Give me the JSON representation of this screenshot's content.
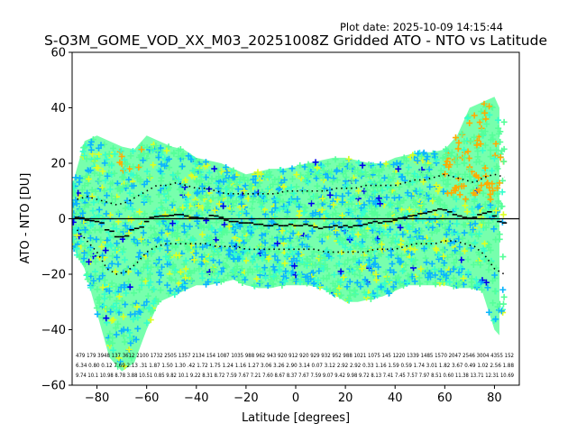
{
  "chart_data": {
    "type": "scatter",
    "title": "S-O3M_GOME_VOD_XX_M03_20251008Z Gridded ATO - NTO vs Latitude",
    "plot_date": "Plot date: 2025-10-09 14:15:44",
    "xlabel": "Latitude [degrees]",
    "ylabel": "ATO - NTO [DU]",
    "xlim": [
      -90,
      90
    ],
    "ylim": [
      -60,
      60
    ],
    "xticks": [
      -80,
      -60,
      -40,
      -20,
      0,
      20,
      40,
      60,
      80
    ],
    "yticks": [
      -60,
      -40,
      -20,
      0,
      20,
      40,
      60
    ],
    "zero_line": 0,
    "palette": {
      "main": "#55ff99",
      "teal": "#33ffcc",
      "blue": "#0ab4ff",
      "yellow": "#ddff22",
      "orange": "#ffaa00",
      "navy": "#0000ee"
    },
    "envelope": {
      "lat": [
        -90,
        -85,
        -80,
        -75,
        -70,
        -65,
        -60,
        -55,
        -50,
        -45,
        -40,
        -35,
        -30,
        -25,
        -20,
        -15,
        -10,
        -5,
        0,
        5,
        10,
        15,
        20,
        25,
        30,
        35,
        40,
        45,
        50,
        55,
        60,
        65,
        70,
        75,
        80,
        82
      ],
      "upper": [
        12,
        28,
        30,
        28,
        26,
        25,
        30,
        28,
        26,
        25,
        22,
        21,
        20,
        18,
        16,
        17,
        18,
        18,
        19,
        20,
        21,
        22,
        22,
        21,
        20,
        20,
        22,
        23,
        24,
        24,
        25,
        30,
        40,
        42,
        44,
        40
      ],
      "lower": [
        -10,
        -18,
        -34,
        -50,
        -55,
        -52,
        -40,
        -30,
        -28,
        -26,
        -24,
        -24,
        -23,
        -22,
        -24,
        -25,
        -25,
        -24,
        -24,
        -24,
        -25,
        -27,
        -30,
        -30,
        -29,
        -28,
        -26,
        -24,
        -24,
        -24,
        -24,
        -25,
        -25,
        -26,
        -40,
        -42
      ]
    },
    "median": {
      "lat": [
        -88,
        -86,
        -84,
        -82,
        -80,
        -78,
        -76,
        -74,
        -72,
        -70,
        -68,
        -66,
        -64,
        -62,
        -60,
        -58,
        -56,
        -54,
        -52,
        -50,
        -48,
        -46,
        -44,
        -42,
        -40,
        -38,
        -36,
        -34,
        -32,
        -30,
        -28,
        -26,
        -24,
        -22,
        -20,
        -18,
        -16,
        -14,
        -12,
        -10,
        -8,
        -6,
        -4,
        -2,
        0,
        2,
        4,
        6,
        8,
        10,
        12,
        14,
        16,
        18,
        20,
        22,
        24,
        26,
        28,
        30,
        32,
        34,
        36,
        38,
        40,
        42,
        44,
        46,
        48,
        50,
        52,
        54,
        56,
        58,
        60,
        62,
        64,
        66,
        68,
        70,
        72,
        74,
        76,
        78,
        80,
        82,
        84
      ],
      "values": [
        0.5,
        0.3,
        -0.5,
        -0.7,
        -1.0,
        -1.5,
        -4.0,
        -4.5,
        -6.5,
        -6.5,
        -6.2,
        -4.0,
        -3.5,
        -3.0,
        -1.0,
        0.5,
        0.8,
        1.0,
        1.0,
        1.2,
        1.5,
        1.5,
        1.0,
        0.5,
        0.5,
        0.2,
        0.0,
        1.2,
        1.0,
        0.5,
        -0.5,
        -1.0,
        -1.0,
        -1.5,
        -1.5,
        -1.5,
        -2.0,
        -2.0,
        -2.5,
        -2.5,
        -2.0,
        -2.5,
        -2.5,
        -2.0,
        -2.5,
        -2.5,
        -2.0,
        -2.5,
        -3.0,
        -3.5,
        -3.0,
        -3.0,
        -2.5,
        -3.0,
        -2.5,
        -3.0,
        -2.5,
        -2.5,
        -2.0,
        -1.5,
        -1.0,
        -1.5,
        -1.0,
        -1.0,
        -0.5,
        0.2,
        0.5,
        1.0,
        1.2,
        1.8,
        2.0,
        2.5,
        3.0,
        3.5,
        3.2,
        2.5,
        1.5,
        1.0,
        0.5,
        0.2,
        0.5,
        1.5,
        2.0,
        2.5,
        1.0,
        -1.0,
        -1.5
      ]
    },
    "sigma_plus": {
      "lat": [
        -88,
        -84,
        -80,
        -76,
        -72,
        -68,
        -64,
        -60,
        -56,
        -52,
        -48,
        -44,
        -40,
        -36,
        -32,
        -28,
        -24,
        -20,
        -16,
        -12,
        -8,
        -4,
        0,
        4,
        8,
        12,
        16,
        20,
        24,
        28,
        32,
        36,
        40,
        44,
        48,
        52,
        56,
        60,
        64,
        68,
        72,
        76,
        80,
        84
      ],
      "values": [
        7,
        8,
        7,
        6,
        5,
        6,
        8,
        10,
        12,
        12,
        13,
        12,
        11,
        11,
        10,
        9,
        9,
        9,
        9,
        9,
        9,
        10,
        10,
        10,
        10,
        10,
        11,
        11,
        11,
        12,
        12,
        12,
        12,
        13,
        14,
        14,
        15,
        16,
        15,
        14,
        13,
        15,
        16,
        15
      ]
    },
    "sigma_minus": {
      "lat": [
        -88,
        -84,
        -80,
        -76,
        -72,
        -68,
        -64,
        -60,
        -56,
        -52,
        -48,
        -44,
        -40,
        -36,
        -32,
        -28,
        -24,
        -20,
        -16,
        -12,
        -8,
        -4,
        0,
        4,
        8,
        12,
        16,
        20,
        24,
        28,
        32,
        36,
        40,
        44,
        48,
        52,
        56,
        60,
        64,
        68,
        72,
        76,
        80,
        84
      ],
      "values": [
        -4,
        -8,
        -12,
        -18,
        -20,
        -19,
        -16,
        -12,
        -10,
        -9,
        -9,
        -9,
        -9,
        -9,
        -10,
        -10,
        -10,
        -11,
        -11,
        -11,
        -11,
        -11,
        -11,
        -11,
        -11,
        -12,
        -12,
        -12,
        -12,
        -12,
        -11,
        -11,
        -11,
        -10,
        -9,
        -9,
        -9,
        -8,
        -8,
        -9,
        -10,
        -13,
        -18,
        -20
      ]
    },
    "bin_stats": {
      "row1": "479 179 3948 137 3612 2100 1732 2505 1357 2134 154 1087 1035 988 962 943 920 912 920 929 932 952 988 1021 1075 145 1220 1339 1485 1570 2047 2546 3004 4355 152",
      "row2": "6.34 0.80 0.12 7.69 2.13 .31 1.87 1.50 1.30 .42 1.72 1.75 1.24 1.16 1.27 3.06 3.26 2.90 3.14 0.07 3.12 2.92 2.92 0.33 1.16 1.59 0.59 1.74 3.01 1.82 3.67 0.49 1.02 2.56 1.88",
      "row3": "9.74 10.1 10.98 8.78 3.88 10.51 0.85 9.82 10.1 9.22 8.31 8.72 7.59 7.67 7.21 7.60 8.67 8.37 7.67 7.59 9.07 9.42 9.98 9.72 8.13 7.41 7.45 7.57 7.97 8.51 0.60 11.38 13.71 12.31 10.69"
    }
  }
}
